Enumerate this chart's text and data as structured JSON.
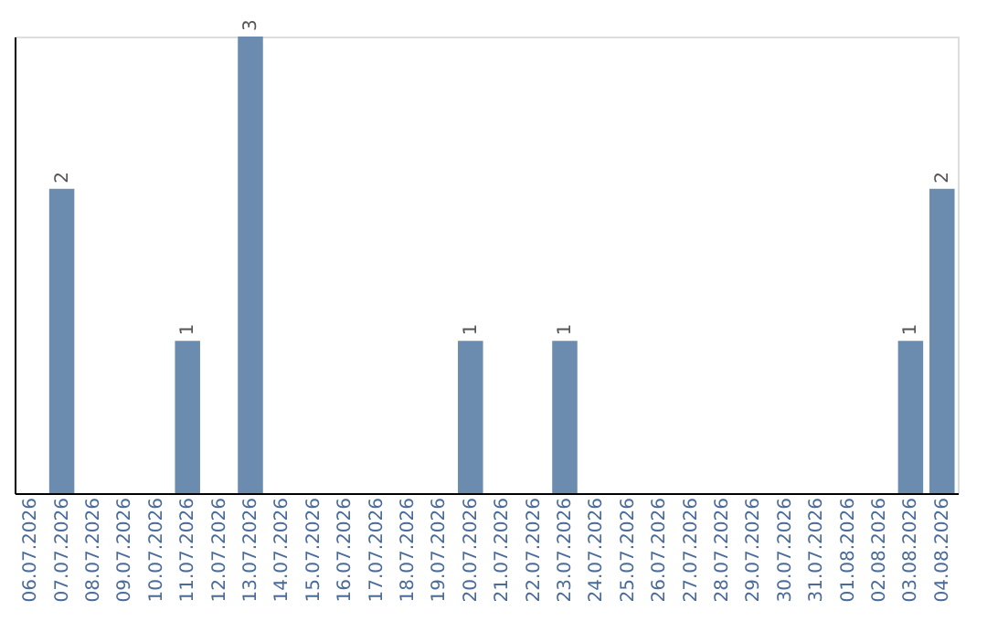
{
  "chart_data": {
    "type": "bar",
    "categories": [
      "06.07.2026",
      "07.07.2026",
      "08.07.2026",
      "09.07.2026",
      "10.07.2026",
      "11.07.2026",
      "12.07.2026",
      "13.07.2026",
      "14.07.2026",
      "15.07.2026",
      "16.07.2026",
      "17.07.2026",
      "18.07.2026",
      "19.07.2026",
      "20.07.2026",
      "21.07.2026",
      "22.07.2026",
      "23.07.2026",
      "24.07.2026",
      "25.07.2026",
      "26.07.2026",
      "27.07.2026",
      "28.07.2026",
      "29.07.2026",
      "30.07.2026",
      "31.07.2026",
      "01.08.2026",
      "02.08.2026",
      "03.08.2026",
      "04.08.2026"
    ],
    "values": [
      null,
      2,
      null,
      null,
      null,
      1,
      null,
      3,
      null,
      null,
      null,
      null,
      null,
      null,
      1,
      null,
      null,
      1,
      null,
      null,
      null,
      null,
      null,
      null,
      null,
      null,
      null,
      null,
      1,
      2
    ],
    "color": "#6b8cae",
    "ylim": [
      0,
      3
    ],
    "data_labels": true,
    "tick_labels": "x",
    "grid": false
  }
}
